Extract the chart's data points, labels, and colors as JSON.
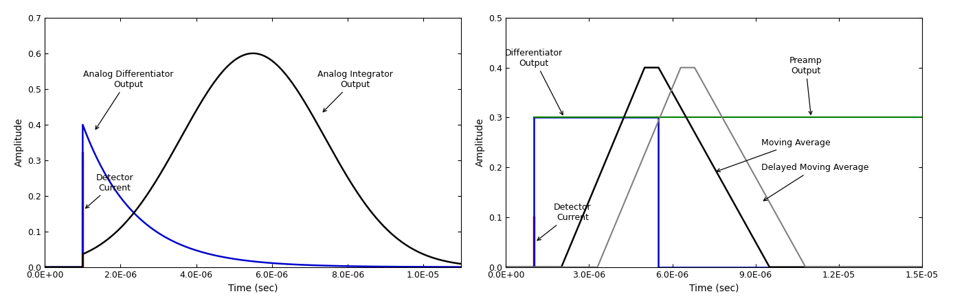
{
  "left": {
    "xlim": [
      0,
      1.1e-05
    ],
    "ylim": [
      0,
      0.7
    ],
    "xticks": [
      0,
      2e-06,
      4e-06,
      6e-06,
      8e-06,
      1e-05
    ],
    "xticklabels": [
      "0.0E+00",
      "2.0E-06",
      "4.0E-06",
      "6.0E-06",
      "8.0E-06",
      "1.0E-05"
    ],
    "yticks": [
      0.0,
      0.1,
      0.2,
      0.3,
      0.4,
      0.5,
      0.6,
      0.7
    ],
    "xlabel": "Time (sec)",
    "ylabel": "Amplitude",
    "detector_color": "#ff0000",
    "differentiator_color": "#0000cc",
    "integrator_color": "#000000"
  },
  "right": {
    "xlim": [
      0,
      1.5e-05
    ],
    "ylim": [
      0,
      0.5
    ],
    "xticks": [
      0,
      3e-06,
      6e-06,
      9e-06,
      1.2e-05,
      1.5e-05
    ],
    "xticklabels": [
      "0.0E+00",
      "3.0E-06",
      "6.0E-06",
      "9.0E-06",
      "1.2E-05",
      "1.5E-05"
    ],
    "yticks": [
      0.0,
      0.1,
      0.2,
      0.3,
      0.4,
      0.5
    ],
    "xlabel": "Time (sec)",
    "ylabel": "Amplitude",
    "detector_color": "#ff0000",
    "differentiator_color": "#0000cc",
    "preamp_color": "#008000",
    "moving_avg_color": "#000000",
    "delayed_moving_avg_color": "#808080"
  }
}
